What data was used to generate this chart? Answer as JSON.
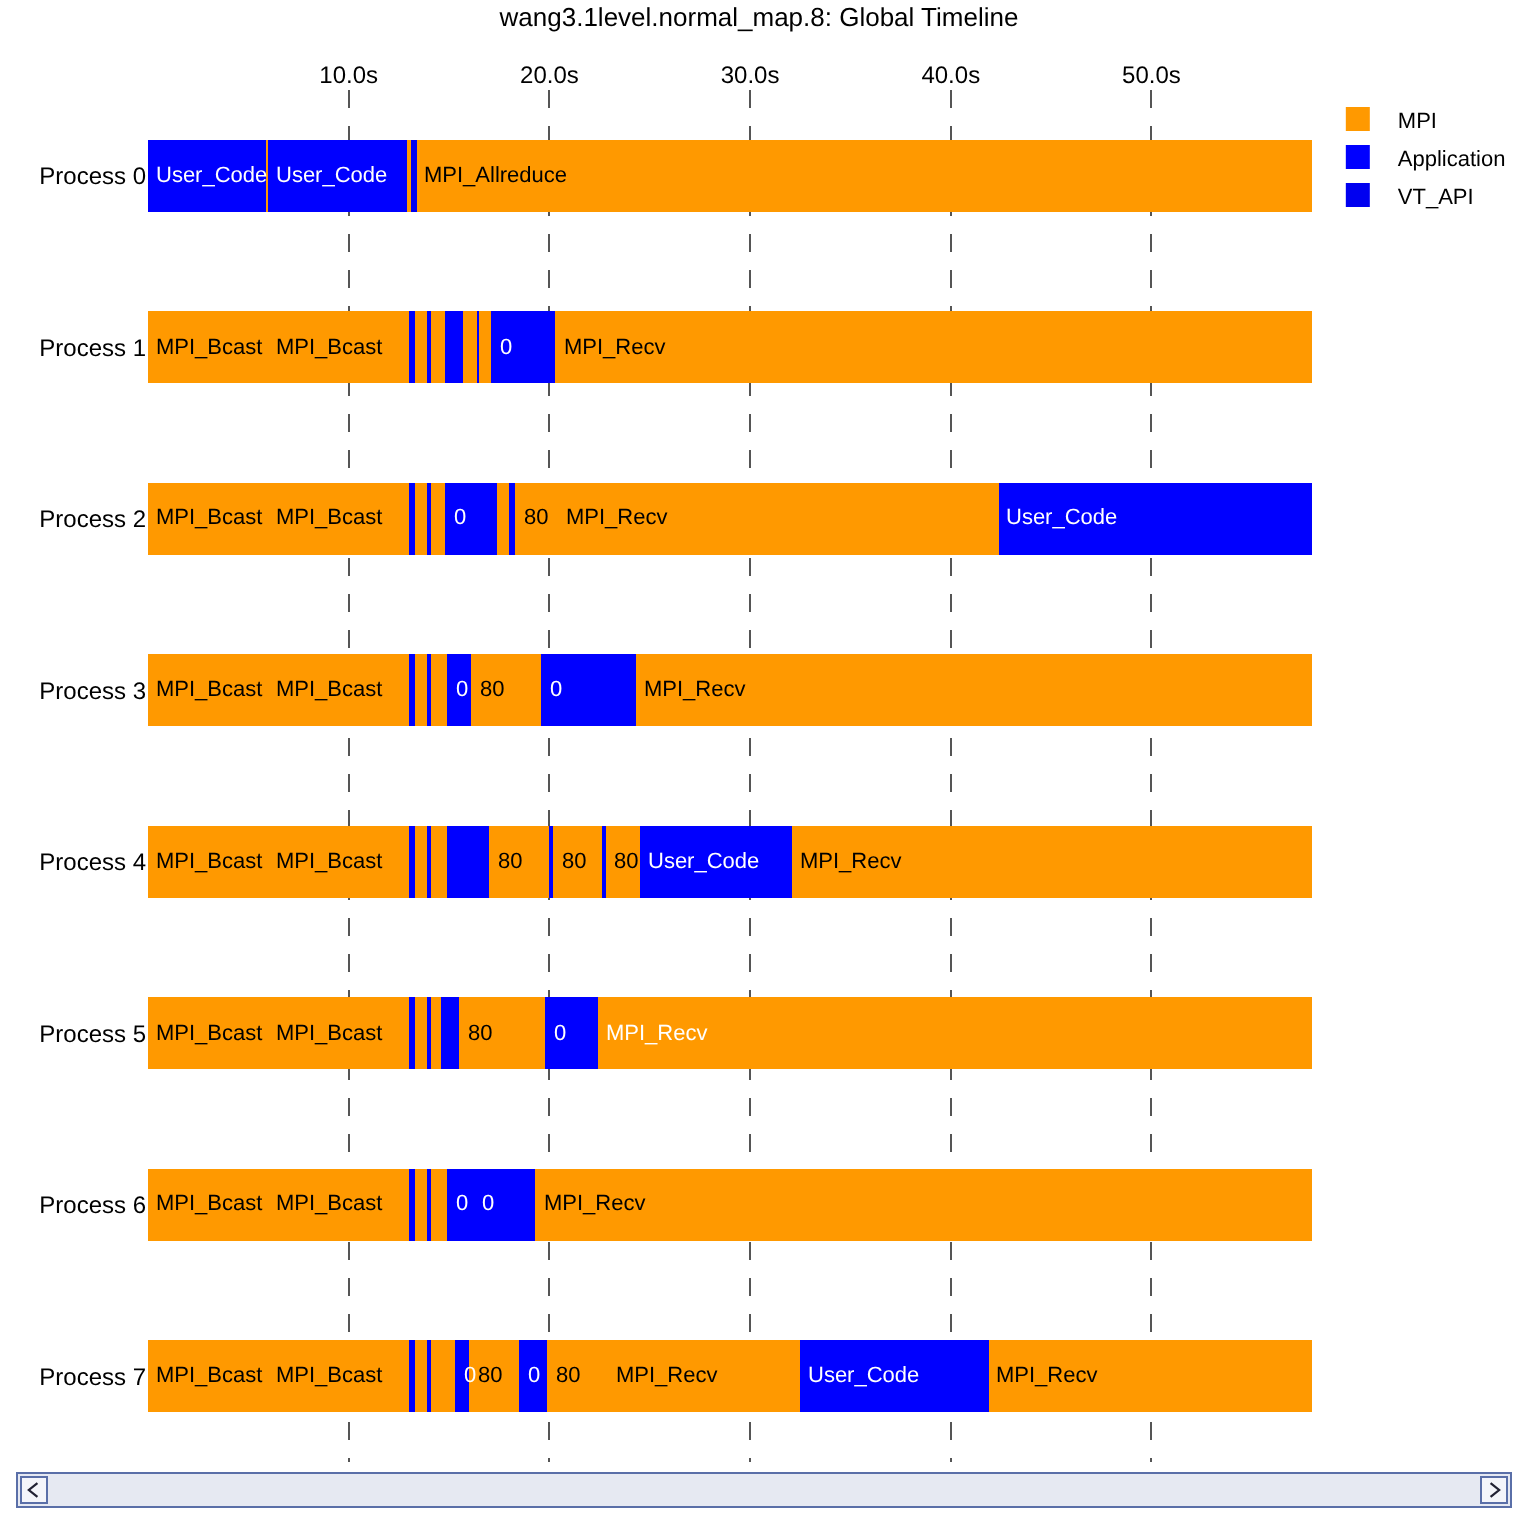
{
  "chart_data": {
    "type": "bar",
    "orientation": "horizontal",
    "title": "wang3.1level.normal_map.8: Global Timeline",
    "categories": [
      "Process 0",
      "Process 1",
      "Process 2",
      "Process 3",
      "Process 4",
      "Process 5",
      "Process 6",
      "Process 7"
    ],
    "xlim": [
      0,
      58
    ],
    "xticks": [
      {
        "value": 10,
        "label": "10.0s"
      },
      {
        "value": 20,
        "label": "20.0s"
      },
      {
        "value": 30,
        "label": "30.0s"
      },
      {
        "value": 40,
        "label": "40.0s"
      },
      {
        "value": 50,
        "label": "50.0s"
      }
    ],
    "grid": "x",
    "legend": "top right",
    "series": [
      {
        "name": "MPI",
        "color": "#ff9900",
        "base": [
          5.9,
          0,
          0,
          0,
          0,
          0,
          0,
          0
        ],
        "values": [
          0.1,
          6.0,
          6.0,
          6.0,
          6.0,
          6.0,
          6.0,
          6.0
        ]
      },
      {
        "name": "Application",
        "color": "#0000ff",
        "base": [
          0,
          13.0,
          13.0,
          13.0,
          13.0,
          13.0,
          13.0,
          13.0
        ],
        "values": [
          5.9,
          0.3,
          0.3,
          0.3,
          0.3,
          0.3,
          0.3,
          0.3
        ]
      },
      {
        "name": "VT_API",
        "color": "#0000f0",
        "base": [
          13.1,
          null,
          null,
          null,
          null,
          null,
          null,
          null
        ],
        "values": [
          0.3,
          null,
          null,
          null,
          null,
          null,
          null,
          null
        ]
      },
      {
        "color": "#ff9900",
        "base": [
          12.9,
          6.0,
          6.0,
          6.0,
          6.0,
          6.0,
          6.0,
          6.0
        ],
        "values": [
          0.2,
          7.0,
          7.0,
          7.0,
          7.0,
          7.0,
          7.0,
          7.0
        ]
      },
      {
        "color": "#ff9900",
        "base": [
          13.4,
          13.3,
          13.3,
          13.3,
          13.3,
          13.3,
          13.3,
          13.3
        ],
        "values": [
          44.6,
          0.6,
          0.6,
          0.6,
          0.6,
          0.6,
          0.6,
          0.6
        ]
      },
      {
        "color": "#ff9900",
        "base": [
          null,
          14.1,
          14.1,
          14.1,
          14.1,
          14.1,
          14.1,
          14.1
        ],
        "values": [
          null,
          0.7,
          0.7,
          0.8,
          0.8,
          0.5,
          0.8,
          1.2
        ]
      },
      {
        "color": "#ff9900",
        "base": [
          null,
          15.7,
          17.4,
          16.1,
          17.0,
          15.5,
          19.3,
          16.0
        ],
        "values": [
          null,
          0.7,
          0.6,
          3.5,
          3.0,
          4.3,
          38.7,
          2.5
        ]
      },
      {
        "color": "#ff9900",
        "base": [
          null,
          16.5,
          18.3,
          24.3,
          20.2,
          22.4,
          null,
          19.9
        ],
        "values": [
          null,
          0.6,
          2.1,
          33.7,
          2.4,
          35.6,
          null,
          3.0
        ]
      },
      {
        "color": "#ff9900",
        "base": [
          null,
          20.3,
          20.4,
          null,
          22.8,
          null,
          null,
          22.9
        ],
        "values": [
          null,
          37.7,
          22.0,
          null,
          1.7,
          null,
          null,
          9.6
        ]
      },
      {
        "color": "#ff9900",
        "base": [
          null,
          null,
          null,
          null,
          32.1,
          null,
          null,
          41.9
        ],
        "values": [
          null,
          null,
          null,
          null,
          25.9,
          null,
          null,
          16.1
        ]
      },
      {
        "color": "#0000ff",
        "base": [
          6.0,
          13.9,
          13.9,
          13.9,
          13.9,
          13.9,
          13.9,
          13.9
        ],
        "values": [
          6.9,
          0.2,
          0.2,
          0.2,
          0.2,
          0.2,
          0.2,
          0.2
        ]
      },
      {
        "color": "#0000ff",
        "base": [
          null,
          14.8,
          14.8,
          14.9,
          14.9,
          14.6,
          14.9,
          15.3
        ],
        "values": [
          null,
          0.9,
          2.6,
          1.2,
          2.1,
          0.9,
          1.3,
          0.7
        ]
      },
      {
        "color": "#0000ff",
        "base": [
          null,
          16.4,
          18.0,
          19.6,
          20.0,
          19.8,
          16.2,
          18.5
        ],
        "values": [
          null,
          0.1,
          0.3,
          4.7,
          0.2,
          2.6,
          3.1,
          1.4
        ]
      },
      {
        "color": "#0000ff",
        "base": [
          null,
          17.1,
          42.4,
          null,
          22.6,
          null,
          null,
          32.5
        ],
        "values": [
          null,
          3.2,
          15.6,
          null,
          0.2,
          null,
          null,
          9.4
        ]
      },
      {
        "color": "#0000ff",
        "base": [
          null,
          null,
          null,
          null,
          24.5,
          null,
          null,
          null
        ],
        "values": [
          null,
          null,
          null,
          null,
          7.6,
          null,
          null,
          null
        ]
      }
    ],
    "annotations": [
      {
        "text": "User_Code",
        "x": 0,
        "y": "Process 0"
      },
      {
        "text": "User_Code",
        "x": 6.0,
        "y": "Process 0"
      },
      {
        "text": "MPI_Allreduce",
        "x": 13.4,
        "y": "Process 0"
      },
      {
        "text": "MPI_Bcast",
        "x": 0,
        "y": "Process 1"
      },
      {
        "text": "MPI_Bcast",
        "x": 6.0,
        "y": "Process 1"
      },
      {
        "text": "0",
        "x": 17.1,
        "y": "Process 1"
      },
      {
        "text": "MPI_Recv",
        "x": 20.3,
        "y": "Process 1"
      },
      {
        "text": "MPI_Bcast",
        "x": 0,
        "y": "Process 2"
      },
      {
        "text": "MPI_Bcast",
        "x": 6.0,
        "y": "Process 2"
      },
      {
        "text": "0",
        "x": 14.8,
        "y": "Process 2"
      },
      {
        "text": "80",
        "x": 18.3,
        "y": "Process 2"
      },
      {
        "text": "MPI_Recv",
        "x": 20.4,
        "y": "Process 2"
      },
      {
        "text": "User_Code",
        "x": 42.4,
        "y": "Process 2"
      },
      {
        "text": "MPI_Bcast",
        "x": 0,
        "y": "Process 3"
      },
      {
        "text": "MPI_Bcast",
        "x": 6.0,
        "y": "Process 3"
      },
      {
        "text": "0",
        "x": 14.9,
        "y": "Process 3"
      },
      {
        "text": "80",
        "x": 16.1,
        "y": "Process 3"
      },
      {
        "text": "0",
        "x": 19.6,
        "y": "Process 3"
      },
      {
        "text": "MPI_Recv",
        "x": 24.3,
        "y": "Process 3"
      },
      {
        "text": "MPI_Bcast",
        "x": 0,
        "y": "Process 4"
      },
      {
        "text": "MPI_Bcast",
        "x": 6.0,
        "y": "Process 4"
      },
      {
        "text": "80",
        "x": 17.0,
        "y": "Process 4"
      },
      {
        "text": "80",
        "x": 20.2,
        "y": "Process 4"
      },
      {
        "text": "80",
        "x": 22.8,
        "y": "Process 4"
      },
      {
        "text": "User_Code",
        "x": 24.5,
        "y": "Process 4"
      },
      {
        "text": "MPI_Recv",
        "x": 32.1,
        "y": "Process 4"
      },
      {
        "text": "MPI_Bcast",
        "x": 0,
        "y": "Process 5"
      },
      {
        "text": "MPI_Bcast",
        "x": 6.0,
        "y": "Process 5"
      },
      {
        "text": "80",
        "x": 15.5,
        "y": "Process 5"
      },
      {
        "text": "0",
        "x": 19.8,
        "y": "Process 5"
      },
      {
        "text": "MPI_Recv",
        "x": 22.4,
        "y": "Process 5"
      },
      {
        "text": "MPI_Bcast",
        "x": 0,
        "y": "Process 6"
      },
      {
        "text": "MPI_Bcast",
        "x": 6.0,
        "y": "Process 6"
      },
      {
        "text": "0",
        "x": 14.9,
        "y": "Process 6"
      },
      {
        "text": "0",
        "x": 16.2,
        "y": "Process 6"
      },
      {
        "text": "MPI_Recv",
        "x": 19.3,
        "y": "Process 6"
      },
      {
        "text": "MPI_Bcast",
        "x": 0,
        "y": "Process 7"
      },
      {
        "text": "MPI_Bcast",
        "x": 6.0,
        "y": "Process 7"
      },
      {
        "text": "0",
        "x": 15.3,
        "y": "Process 7"
      },
      {
        "text": "80",
        "x": 16.0,
        "y": "Process 7"
      },
      {
        "text": "0",
        "x": 18.5,
        "y": "Process 7"
      },
      {
        "text": "80",
        "x": 19.9,
        "y": "Process 7"
      },
      {
        "text": "MPI_Recv",
        "x": 22.9,
        "y": "Process 7"
      },
      {
        "text": "User_Code",
        "x": 32.5,
        "y": "Process 7"
      },
      {
        "text": "MPI_Recv",
        "x": 41.9,
        "y": "Process 7"
      }
    ]
  }
}
